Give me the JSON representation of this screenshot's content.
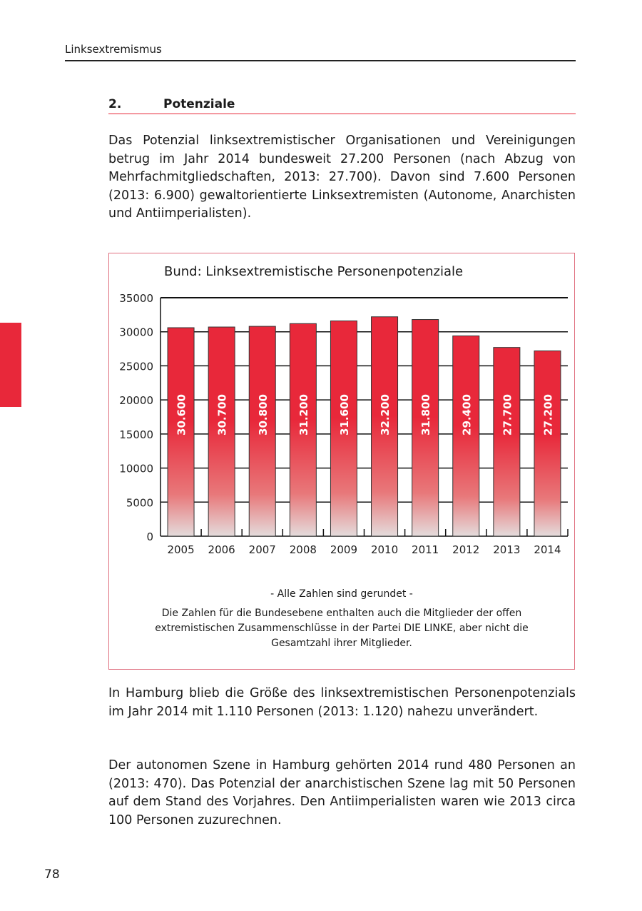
{
  "header": {
    "running_title": "Linksextremismus"
  },
  "section": {
    "number": "2.",
    "title": "Potenziale"
  },
  "paragraphs": [
    "Das Potenzial linksextremistischer Organisationen und Vereinigungen betrug im Jahr 2014 bundesweit 27.200 Personen (nach Abzug von Mehrfachmitgliedschaften, 2013: 27.700). Davon sind 7.600 Personen (2013: 6.900) gewaltorientierte Linksextremisten (Autonome, Anarchisten und Antiimperialisten).",
    "In Hamburg blieb die Größe des linksextremistischen Personenpotenzials im Jahr 2014 mit 1.110 Personen (2013: 1.120) nahezu unverändert.",
    "Der autonomen Szene in Hamburg gehörten 2014 rund 480 Personen an (2013: 470). Das Potenzial der anarchistischen Szene lag mit 50 Personen auf dem Stand des Vorjahres. Den Antiimperialisten waren wie 2013 circa 100 Personen zuzurechnen."
  ],
  "chart_data": {
    "type": "bar",
    "title": "Bund: Linksextremistische Personenpotenziale",
    "categories": [
      "2005",
      "2006",
      "2007",
      "2008",
      "2009",
      "2010",
      "2011",
      "2012",
      "2013",
      "2014"
    ],
    "values": [
      30600,
      30700,
      30800,
      31200,
      31600,
      32200,
      31800,
      29400,
      27700,
      27200
    ],
    "data_labels": [
      "30.600",
      "30.700",
      "30.800",
      "31.200",
      "31.600",
      "32.200",
      "31.800",
      "29.400",
      "27.700",
      "27.200"
    ],
    "y_ticks": [
      "0",
      "5000",
      "10000",
      "15000",
      "20000",
      "25000",
      "30000",
      "35000"
    ],
    "ylim": [
      0,
      35000
    ],
    "grid": true,
    "bar_color": "#e8283a",
    "xlabel": "",
    "ylabel": ""
  },
  "notes": {
    "rounded": "- Alle Zahlen sind gerundet -",
    "explanation": "Die Zahlen für die Bundesebene enthalten auch die Mitglieder der offen extremistischen Zusammenschlüsse in der Partei DIE LINKE, aber nicht die Gesamtzahl ihrer Mitglieder."
  },
  "page_number": "78"
}
